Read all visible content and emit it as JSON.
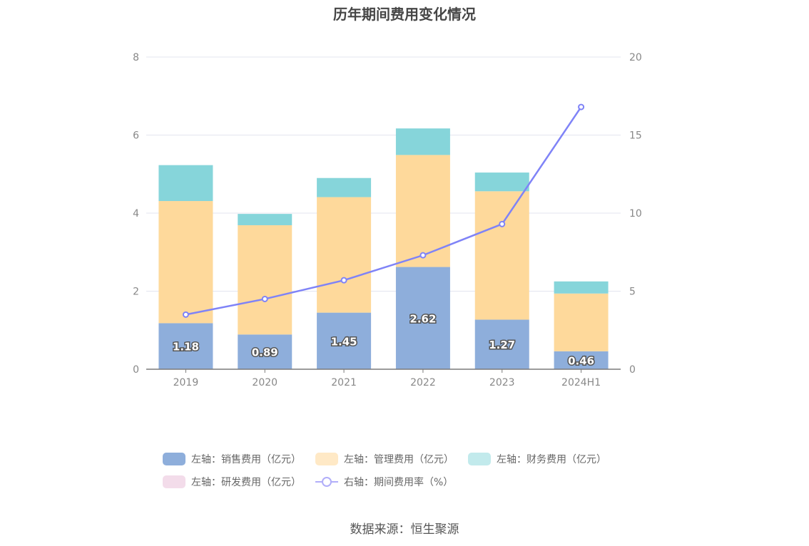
{
  "title": "历年期间费用变化情况",
  "source": "数据来源：恒生聚源",
  "chart_data": {
    "type": "bar",
    "stacked": true,
    "categories": [
      "2019",
      "2020",
      "2021",
      "2022",
      "2023",
      "2024H1"
    ],
    "left_axis": {
      "ylim": [
        0,
        8
      ],
      "ticks": [
        "0",
        "2",
        "4",
        "6",
        "8"
      ]
    },
    "right_axis": {
      "ylim": [
        0,
        20
      ],
      "ticks": [
        "0",
        "5",
        "10",
        "15",
        "20"
      ]
    },
    "grid": true,
    "legend_position": "bottom",
    "series": [
      {
        "name": "左轴：销售费用（亿元）",
        "type": "bar",
        "axis": "left",
        "color": "#8eaedb",
        "values": [
          1.18,
          0.89,
          1.45,
          2.62,
          1.27,
          0.46
        ],
        "labels": [
          "1.18",
          "0.89",
          "1.45",
          "2.62",
          "1.27",
          "0.46"
        ]
      },
      {
        "name": "左轴：管理费用（亿元）",
        "type": "bar",
        "axis": "left",
        "color": "#fed99b",
        "values": [
          3.13,
          2.8,
          2.96,
          2.87,
          3.29,
          1.48
        ]
      },
      {
        "name": "左轴：财务费用（亿元）",
        "type": "bar",
        "axis": "left",
        "color": "#86d5da",
        "values": [
          0.92,
          0.29,
          0.49,
          0.68,
          0.48,
          0.31
        ]
      },
      {
        "name": "左轴：研发费用（亿元）",
        "type": "bar",
        "axis": "left",
        "color": "#f3dcea",
        "values": [
          0,
          0,
          0,
          0,
          0,
          0
        ]
      },
      {
        "name": "右轴：期间费用率（%）",
        "type": "line",
        "axis": "right",
        "color": "#7f83f7",
        "values": [
          3.5,
          4.5,
          5.7,
          7.3,
          9.3,
          16.8
        ]
      }
    ]
  }
}
